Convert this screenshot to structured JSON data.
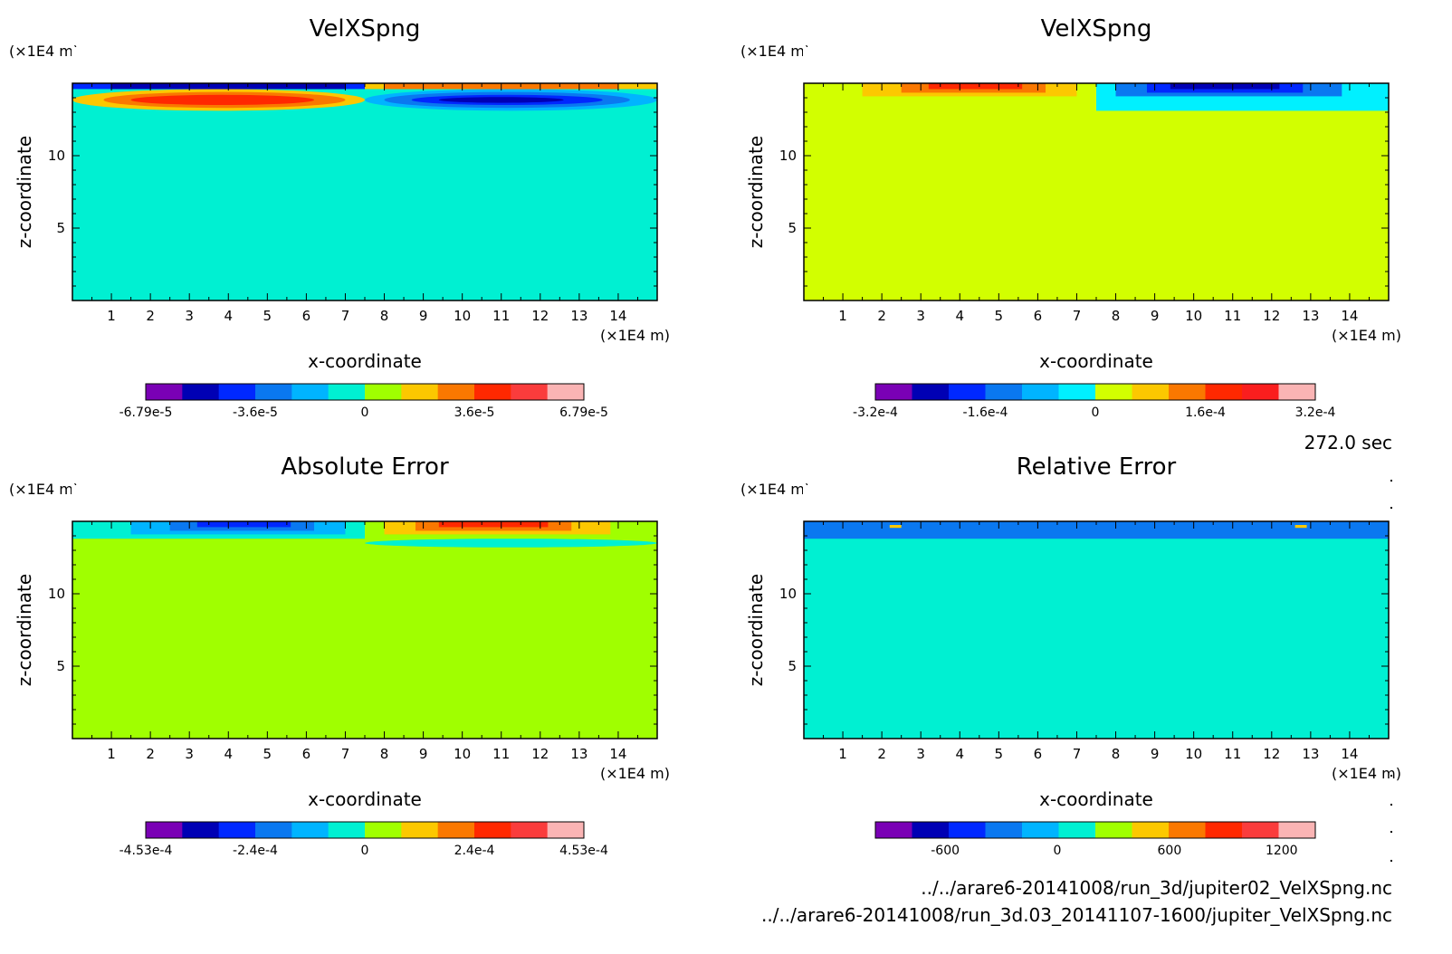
{
  "time_label": "272.0 sec",
  "files": [
    "../../arare6-20141008/run_3d/jupiter02_VelXSpng.nc",
    "../../arare6-20141008/run_3d.03_20141107-1600/jupiter_VelXSpng.nc"
  ],
  "chart_data": [
    {
      "type": "heatmap",
      "title": "VelXSpng",
      "xlabel": "x-coordinate",
      "ylabel": "z-coordinate",
      "x_unit": "(×1E4 m)",
      "y_unit": "(×1E4 m)",
      "xlim": [
        0,
        15
      ],
      "ylim": [
        0,
        15
      ],
      "x_ticks": [
        "1",
        "2",
        "3",
        "4",
        "5",
        "6",
        "7",
        "8",
        "9",
        "10",
        "11",
        "12",
        "13",
        "14"
      ],
      "y_ticks": [
        "5",
        "10"
      ],
      "background_level": 5,
      "regions": [
        {
          "x": [
            0,
            7.5
          ],
          "z": [
            14.6,
            15
          ],
          "level": 2
        },
        {
          "x": [
            7.5,
            15
          ],
          "z": [
            14.6,
            15
          ],
          "level": 7
        },
        {
          "x": [
            0,
            7.5
          ],
          "z": [
            13.1,
            14.6
          ],
          "level": 7
        },
        {
          "x": [
            7.5,
            15
          ],
          "z": [
            13.1,
            14.6
          ],
          "level": 4
        },
        {
          "x": [
            0.8,
            7
          ],
          "z": [
            13.3,
            14.4
          ],
          "level": 8
        },
        {
          "x": [
            1.5,
            6.2
          ],
          "z": [
            13.5,
            14.2
          ],
          "level": 9
        },
        {
          "x": [
            8,
            14.3
          ],
          "z": [
            13.3,
            14.4
          ],
          "level": 3
        },
        {
          "x": [
            8.7,
            13.6
          ],
          "z": [
            13.5,
            14.2
          ],
          "level": 2
        },
        {
          "x": [
            9.4,
            12.6
          ],
          "z": [
            13.65,
            14.05
          ],
          "level": 1
        },
        {
          "x": [
            1,
            7
          ],
          "z": [
            14.6,
            15
          ],
          "level": 1
        },
        {
          "x": [
            8,
            14
          ],
          "z": [
            14.6,
            15
          ],
          "level": 8
        }
      ],
      "colorbar": {
        "colors": [
          "#7a00b5",
          "#0000b4",
          "#0028ff",
          "#0a78f0",
          "#00b4ff",
          "#00f0d2",
          "#a0ff00",
          "#fcc800",
          "#fa7800",
          "#ff2800",
          "#fa3c3c",
          "#fab4b4"
        ],
        "labels": [
          "-6.79e-5",
          "-3.6e-5",
          "0",
          "3.6e-5",
          "6.79e-5"
        ]
      }
    },
    {
      "type": "heatmap",
      "title": "VelXSpng",
      "xlabel": "x-coordinate",
      "ylabel": "z-coordinate",
      "x_unit": "(×1E4 m)",
      "y_unit": "(×1E4 m)",
      "xlim": [
        0,
        15
      ],
      "ylim": [
        0,
        15
      ],
      "x_ticks": [
        "1",
        "2",
        "3",
        "4",
        "5",
        "6",
        "7",
        "8",
        "9",
        "10",
        "11",
        "12",
        "13",
        "14"
      ],
      "y_ticks": [
        "5",
        "10"
      ],
      "background_level": 6,
      "regions": [
        {
          "x": [
            7.5,
            15
          ],
          "z": [
            13.1,
            15
          ],
          "level": 5
        },
        {
          "x": [
            1.5,
            7
          ],
          "z": [
            14.1,
            15
          ],
          "level": 7
        },
        {
          "x": [
            2.5,
            6.2
          ],
          "z": [
            14.35,
            15
          ],
          "level": 8
        },
        {
          "x": [
            3.2,
            5.6
          ],
          "z": [
            14.6,
            15
          ],
          "level": 9
        },
        {
          "x": [
            8,
            13.8
          ],
          "z": [
            14.1,
            15
          ],
          "level": 3
        },
        {
          "x": [
            8.8,
            12.8
          ],
          "z": [
            14.35,
            15
          ],
          "level": 2
        },
        {
          "x": [
            9.4,
            12.2
          ],
          "z": [
            14.6,
            15
          ],
          "level": 1
        }
      ],
      "colorbar": {
        "colors": [
          "#7a00b5",
          "#0000b4",
          "#0028ff",
          "#0a78f0",
          "#00b4ff",
          "#00f0ff",
          "#d2ff00",
          "#fcc800",
          "#fa7800",
          "#ff2800",
          "#fa1e1e",
          "#fab4b4"
        ],
        "labels": [
          "-3.2e-4",
          "-1.6e-4",
          "0",
          "1.6e-4",
          "3.2e-4"
        ]
      }
    },
    {
      "type": "heatmap",
      "title": "Absolute Error",
      "xlabel": "x-coordinate",
      "ylabel": "z-coordinate",
      "x_unit": "(×1E4 m)",
      "y_unit": "(×1E4 m)",
      "xlim": [
        0,
        15
      ],
      "ylim": [
        0,
        15
      ],
      "x_ticks": [
        "1",
        "2",
        "3",
        "4",
        "5",
        "6",
        "7",
        "8",
        "9",
        "10",
        "11",
        "12",
        "13",
        "14"
      ],
      "y_ticks": [
        "5",
        "10"
      ],
      "background_level": 6,
      "regions": [
        {
          "x": [
            0,
            7.5
          ],
          "z": [
            13.8,
            15
          ],
          "level": 5
        },
        {
          "x": [
            7.5,
            15
          ],
          "z": [
            13.2,
            13.8
          ],
          "level": 5
        },
        {
          "x": [
            1.5,
            7
          ],
          "z": [
            14.1,
            15
          ],
          "level": 4
        },
        {
          "x": [
            2.5,
            6.2
          ],
          "z": [
            14.35,
            15
          ],
          "level": 3
        },
        {
          "x": [
            3.2,
            5.6
          ],
          "z": [
            14.6,
            15
          ],
          "level": 2
        },
        {
          "x": [
            8,
            13.8
          ],
          "z": [
            14.1,
            15
          ],
          "level": 7
        },
        {
          "x": [
            8.8,
            12.8
          ],
          "z": [
            14.35,
            15
          ],
          "level": 8
        },
        {
          "x": [
            9.4,
            12.2
          ],
          "z": [
            14.6,
            15
          ],
          "level": 9
        }
      ],
      "colorbar": {
        "colors": [
          "#7a00b5",
          "#0000b4",
          "#0028ff",
          "#0a78f0",
          "#00b4ff",
          "#00f0d2",
          "#a0ff00",
          "#fcc800",
          "#fa7800",
          "#ff2800",
          "#fa3c3c",
          "#fab4b4"
        ],
        "labels": [
          "-4.53e-4",
          "-2.4e-4",
          "0",
          "2.4e-4",
          "4.53e-4"
        ]
      }
    },
    {
      "type": "heatmap",
      "title": "Relative Error",
      "xlabel": "x-coordinate",
      "ylabel": "z-coordinate",
      "x_unit": "(×1E4 m)",
      "y_unit": "(×1E4 m)",
      "xlim": [
        0,
        15
      ],
      "ylim": [
        0,
        15
      ],
      "x_ticks": [
        "1",
        "2",
        "3",
        "4",
        "5",
        "6",
        "7",
        "8",
        "9",
        "10",
        "11",
        "12",
        "13",
        "14"
      ],
      "y_ticks": [
        "5",
        "10"
      ],
      "background_level": 5,
      "regions": [
        {
          "x": [
            0,
            15
          ],
          "z": [
            13.8,
            15
          ],
          "level": 3
        },
        {
          "x": [
            2.2,
            2.5
          ],
          "z": [
            14.55,
            14.75
          ],
          "level": 7
        },
        {
          "x": [
            12.6,
            12.9
          ],
          "z": [
            14.55,
            14.75
          ],
          "level": 7
        }
      ],
      "colorbar": {
        "colors": [
          "#7a00b5",
          "#0000b4",
          "#0028ff",
          "#0a78f0",
          "#00b4ff",
          "#00f0d2",
          "#a0ff00",
          "#fcc800",
          "#fa7800",
          "#ff2800",
          "#fa3c3c",
          "#fab4b4"
        ],
        "labels": [
          "-600",
          "0",
          "600",
          "1200"
        ]
      }
    }
  ]
}
